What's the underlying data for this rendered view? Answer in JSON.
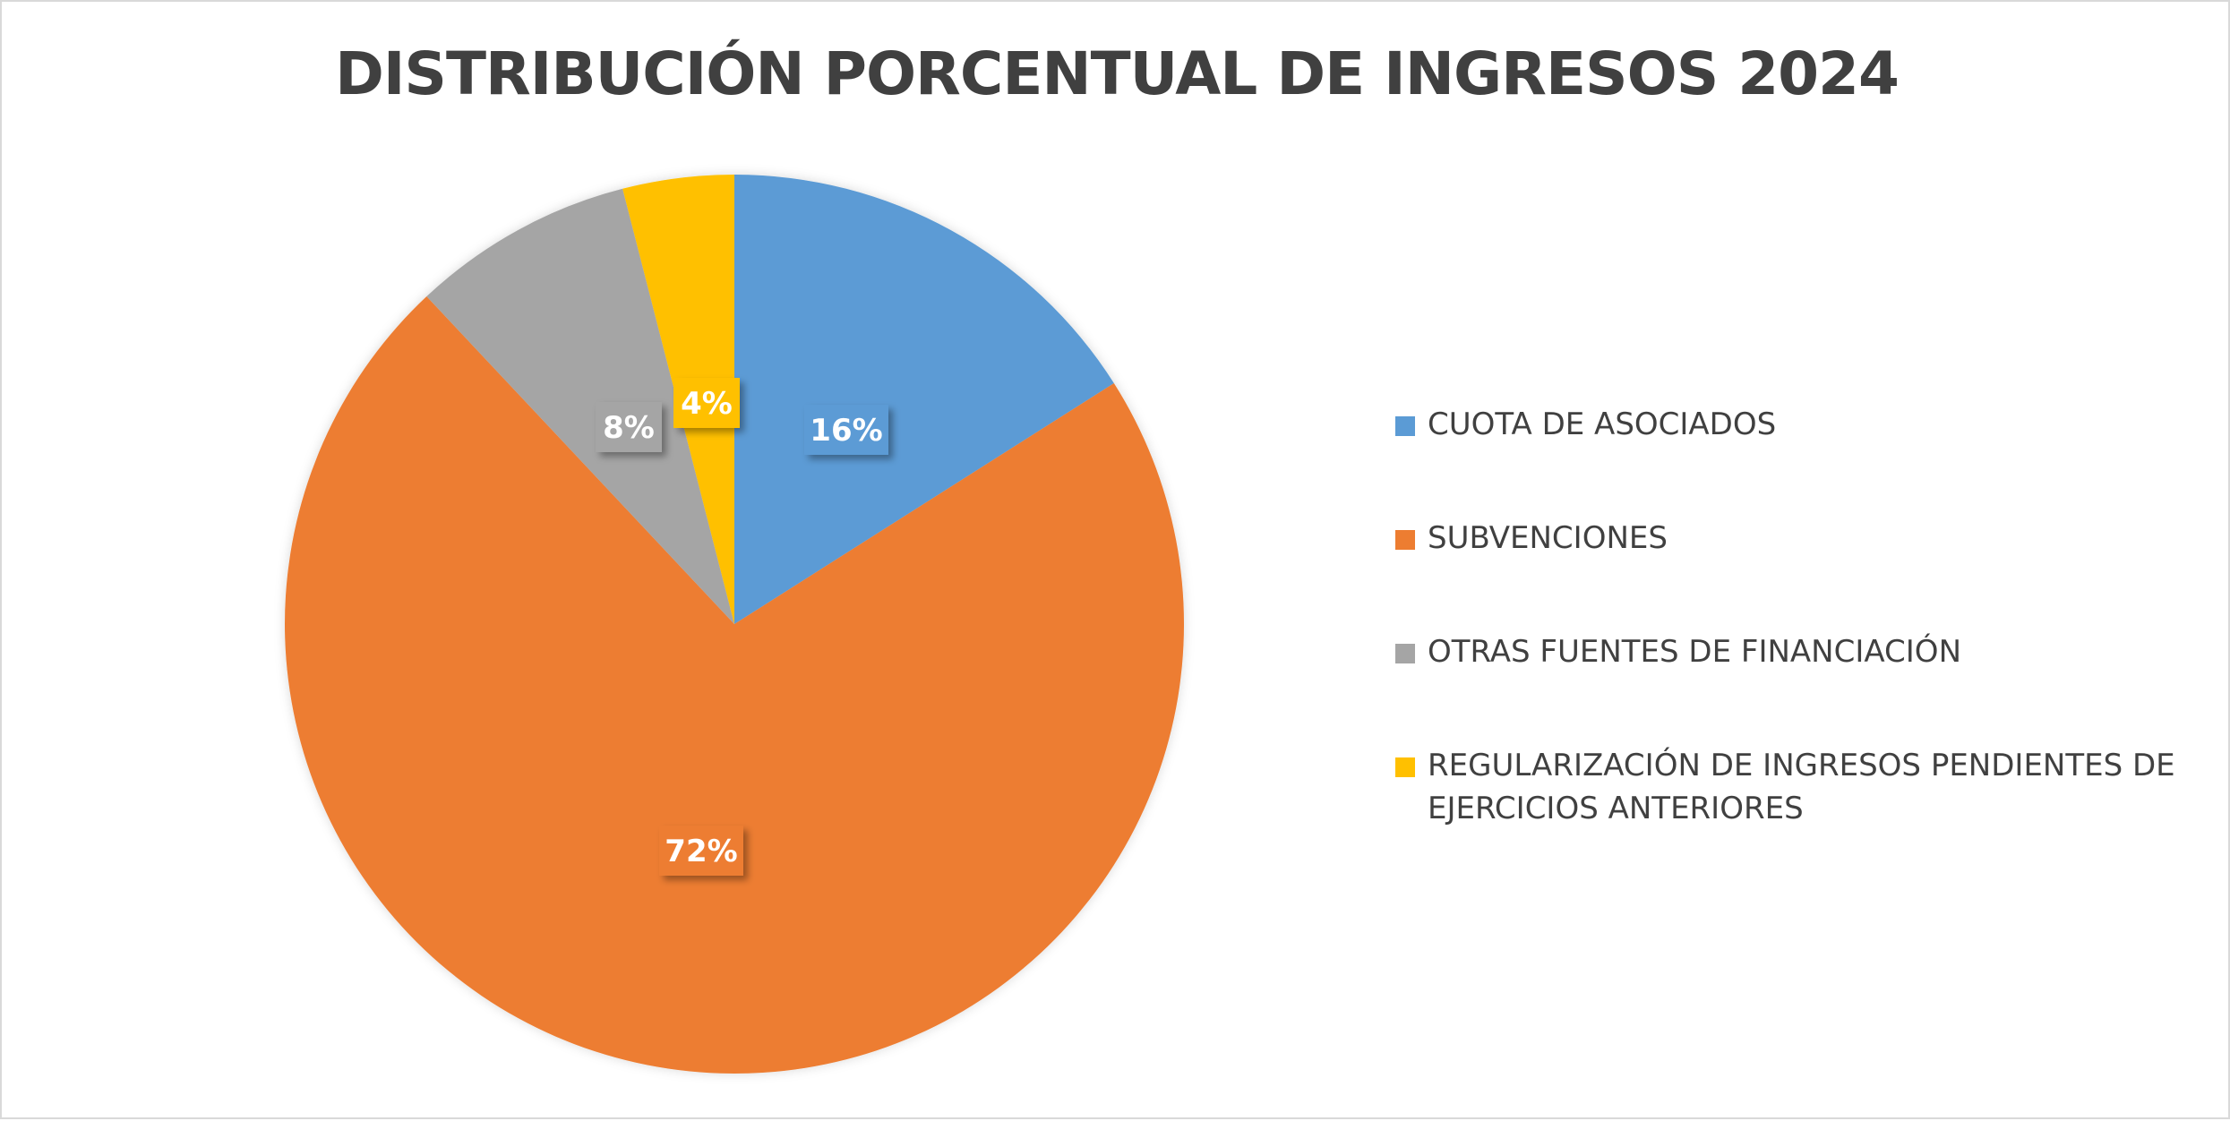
{
  "chart_data": {
    "type": "pie",
    "title": "DISTRIBUCIÓN PORCENTUAL DE INGRESOS 2024",
    "categories": [
      "CUOTA DE ASOCIADOS",
      "SUBVENCIONES",
      "OTRAS FUENTES DE FINANCIACIÓN",
      "REGULARIZACIÓN DE INGRESOS PENDIENTES DE EJERCICIOS ANTERIORES"
    ],
    "values": [
      16,
      72,
      8,
      4
    ],
    "data_labels": [
      "16%",
      "72%",
      "8%",
      "4%"
    ],
    "colors": [
      "#5b9bd5",
      "#ed7d31",
      "#a5a5a5",
      "#ffc000"
    ],
    "legend": {
      "placement": "right",
      "entries": [
        "CUOTA DE ASOCIADOS",
        "SUBVENCIONES",
        "OTRAS FUENTES DE FINANCIACIÓN",
        "REGULARIZACIÓN DE INGRESOS PENDIENTES DE EJERCICIOS ANTERIORES"
      ]
    },
    "start_angle": "12 o'clock",
    "direction": "clockwise"
  }
}
